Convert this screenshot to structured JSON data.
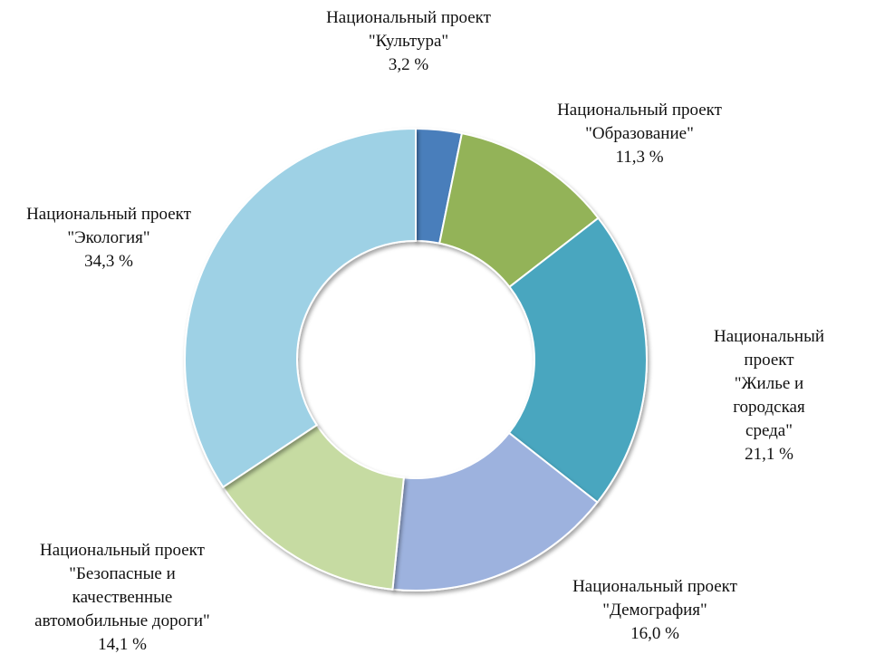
{
  "chart_data": {
    "type": "donut",
    "categories": [
      "Национальный проект\n\"Культура\"",
      "Национальный проект\n\"Образование\"",
      "Национальный проект\n\"Жилье и городская\nсреда\"",
      "Национальный проект\n\"Демография\"",
      "Национальный проект\n\"Безопасные и\nкачественные\nавтомобильные дороги\"",
      "Национальный проект\n\"Экология\""
    ],
    "values": [
      3.2,
      11.3,
      21.1,
      16.0,
      14.1,
      34.3
    ],
    "value_labels": [
      "3,2 %",
      "11,3 %",
      "21,1 %",
      "16,0 %",
      "14,1 %",
      "34,3 %"
    ],
    "colors": [
      "#4a7ebb",
      "#93b358",
      "#4aa6bf",
      "#9db2de",
      "#c6dba2",
      "#9ed1e5"
    ]
  }
}
